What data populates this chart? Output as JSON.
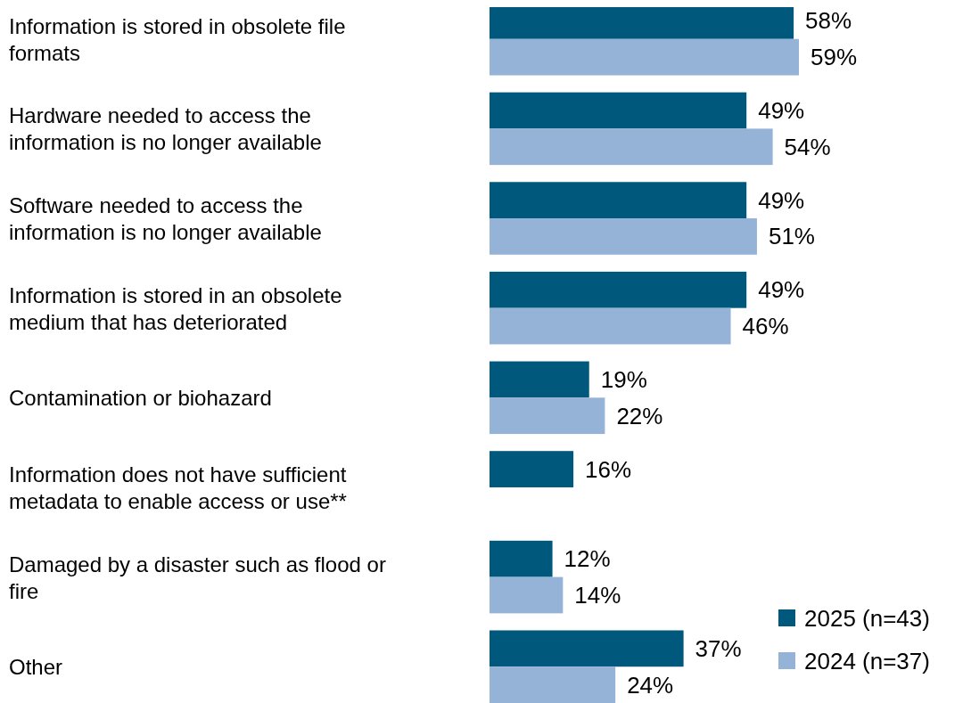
{
  "chart_data": {
    "type": "bar",
    "orientation": "horizontal",
    "categories": [
      "Information is stored in obsolete file formats",
      "Hardware needed to access the information is no longer available",
      "Software needed to access the information is no longer available",
      "Information is stored in an obsolete medium that has deteriorated",
      "Contamination or biohazard",
      "Information does not have sufficient metadata to enable access or use**",
      "Damaged by a disaster such as flood or fire",
      "Other"
    ],
    "series": [
      {
        "name": "2025 (n=43)",
        "color": "#00587c",
        "values": [
          58,
          49,
          49,
          49,
          19,
          16,
          12,
          37
        ],
        "value_labels": [
          "58%",
          "49%",
          "49%",
          "49%",
          "19%",
          "16%",
          "12%",
          "37%"
        ]
      },
      {
        "name": "2024 (n=37)",
        "color": "#95b3d7",
        "values": [
          59,
          54,
          51,
          46,
          22,
          null,
          14,
          24
        ],
        "value_labels": [
          "59%",
          "54%",
          "51%",
          "46%",
          "22%",
          null,
          "14%",
          "24%"
        ]
      }
    ],
    "legend": "bottom right"
  }
}
